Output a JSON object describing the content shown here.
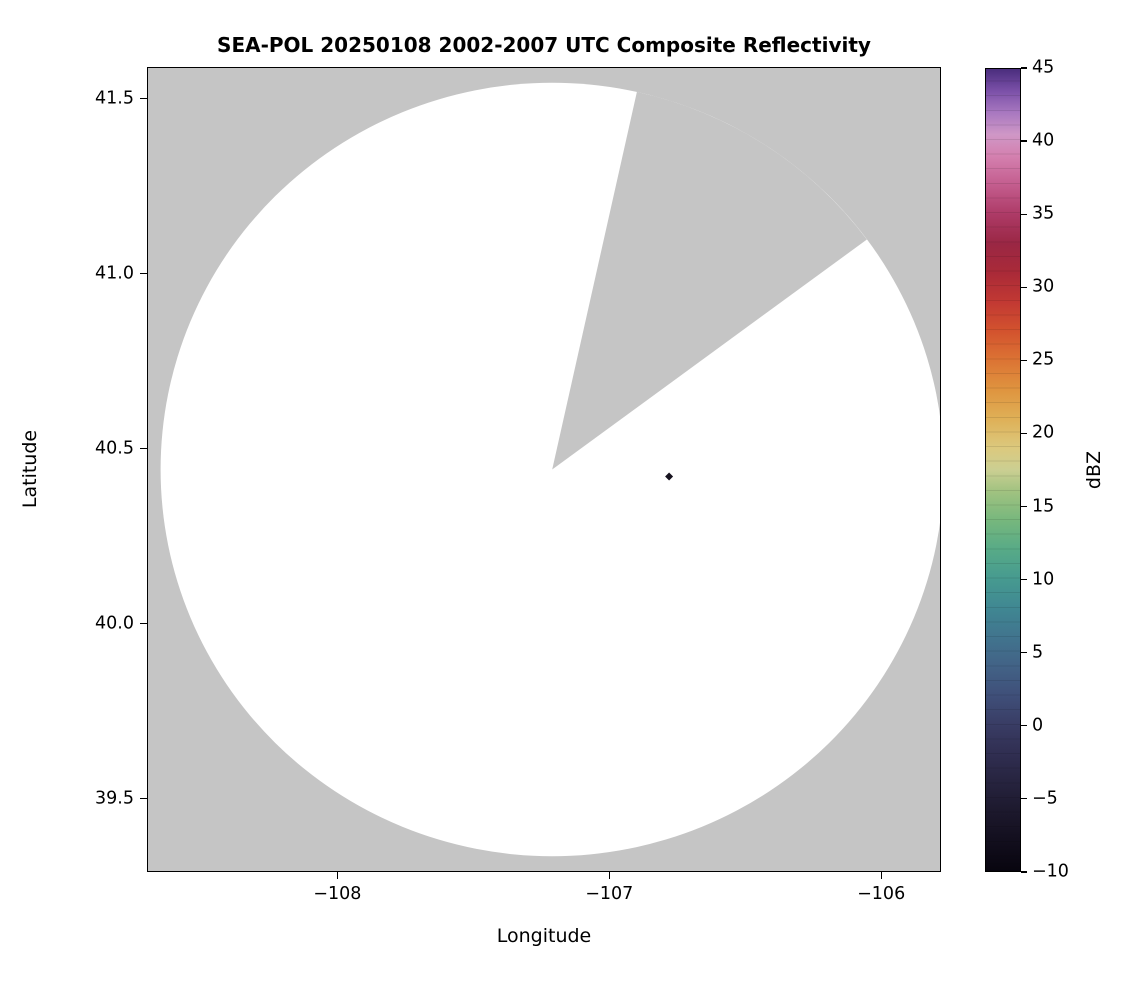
{
  "chart_data": {
    "type": "heatmap",
    "title": "SEA-POL 20250108 2002-2007 UTC Composite Reflectivity",
    "xlabel": "Longitude",
    "ylabel": "Latitude",
    "xlim": [
      -108.7,
      -105.78
    ],
    "ylim": [
      39.29,
      41.59
    ],
    "grid": false,
    "xticks": {
      "values": [
        -108,
        -107,
        -106
      ],
      "labels": [
        "−108",
        "−107",
        "−106"
      ]
    },
    "yticks": {
      "values": [
        41.5,
        41.0,
        40.5,
        40.0,
        39.5
      ],
      "labels": [
        "41.5",
        "41.0",
        "40.5",
        "40.0",
        "39.5"
      ]
    },
    "background_nodata_color": "#c5c5c5",
    "coverage": {
      "shape": "radar-scan-circle",
      "center": {
        "lon": -107.21,
        "lat": 40.44
      },
      "radius_lon_deg": 1.44,
      "radius_lat_deg": 1.105,
      "fill_color": "#ffffff",
      "blocked_sector_azimuth_deg": [
        12.5,
        53.5
      ]
    },
    "echoes": [
      {
        "lon": -106.78,
        "lat": 40.42,
        "approx_dbz": -5,
        "color": "#17131f"
      }
    ],
    "colorbar": {
      "label": "dBZ",
      "min": -10,
      "max": 45,
      "orientation": "vertical",
      "position": "right",
      "colormap_name": "ChaseSpectral",
      "ticks": {
        "values": [
          45,
          40,
          35,
          30,
          25,
          20,
          15,
          10,
          5,
          0,
          -5,
          -10
        ],
        "labels": [
          "45",
          "40",
          "35",
          "30",
          "25",
          "20",
          "15",
          "10",
          "5",
          "0",
          "−5",
          "−10"
        ]
      },
      "stops": [
        {
          "v": -10,
          "c": "#08050f"
        },
        {
          "v": -8,
          "c": "#120e1d"
        },
        {
          "v": -6,
          "c": "#1c182c"
        },
        {
          "v": -4,
          "c": "#26233e"
        },
        {
          "v": -2,
          "c": "#302e51"
        },
        {
          "v": 0,
          "c": "#393c64"
        },
        {
          "v": 2,
          "c": "#3f4f79"
        },
        {
          "v": 4,
          "c": "#426286"
        },
        {
          "v": 6,
          "c": "#41748e"
        },
        {
          "v": 8,
          "c": "#408792"
        },
        {
          "v": 10,
          "c": "#469a90"
        },
        {
          "v": 12,
          "c": "#57aa87"
        },
        {
          "v": 14,
          "c": "#76b77d"
        },
        {
          "v": 16,
          "c": "#a0c280"
        },
        {
          "v": 17.5,
          "c": "#cbcf92"
        },
        {
          "v": 19,
          "c": "#dcc97e"
        },
        {
          "v": 21,
          "c": "#dfb057"
        },
        {
          "v": 23,
          "c": "#df943f"
        },
        {
          "v": 25,
          "c": "#dc7434"
        },
        {
          "v": 27,
          "c": "#d3532e"
        },
        {
          "v": 29,
          "c": "#c23933"
        },
        {
          "v": 31,
          "c": "#aa2a38"
        },
        {
          "v": 33,
          "c": "#9a2744"
        },
        {
          "v": 35,
          "c": "#ad3a66"
        },
        {
          "v": 37,
          "c": "#c35c8d"
        },
        {
          "v": 39,
          "c": "#d480af"
        },
        {
          "v": 40.5,
          "c": "#cf97c6"
        },
        {
          "v": 42,
          "c": "#a878c0"
        },
        {
          "v": 43.5,
          "c": "#7b50a8"
        },
        {
          "v": 45,
          "c": "#4a2d7d"
        }
      ]
    }
  }
}
